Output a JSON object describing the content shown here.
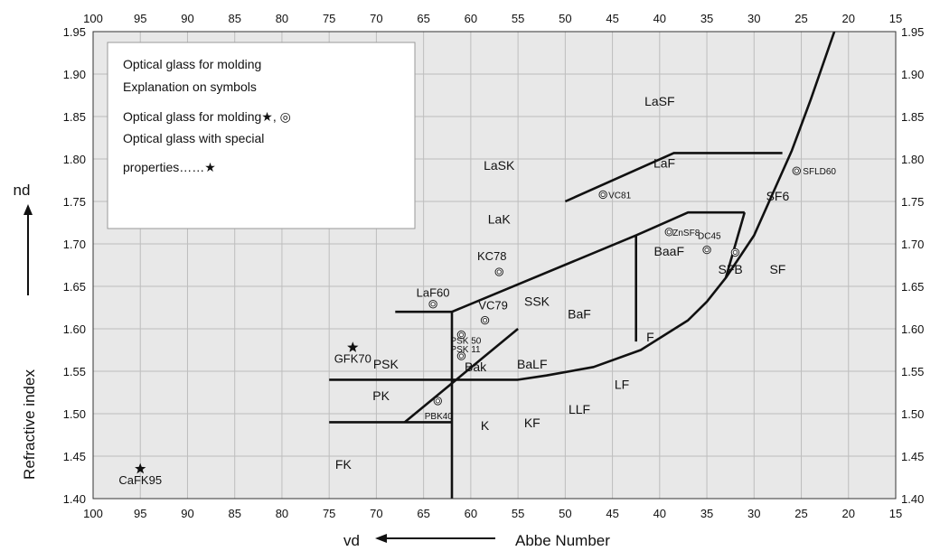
{
  "chart_data": {
    "type": "scatter",
    "x_axis": {
      "label": "vd",
      "caption": "Abbe Number",
      "range": [
        100,
        15
      ],
      "ticks": [
        100,
        95,
        90,
        85,
        80,
        75,
        70,
        65,
        60,
        55,
        50,
        45,
        40,
        35,
        30,
        25,
        20,
        15
      ]
    },
    "y_axis": {
      "label": "Refractive index",
      "symbol": "nd",
      "range": [
        1.4,
        1.95
      ],
      "ticks": [
        "1.40",
        "1.45",
        "1.50",
        "1.55",
        "1.60",
        "1.65",
        "1.70",
        "1.75",
        "1.80",
        "1.85",
        "1.90",
        "1.95"
      ]
    },
    "grid": true,
    "legend": {
      "placement": "top-left",
      "lines": [
        "Optical glass for molding",
        "Explanation on symbols",
        "Optical glass for molding★, ◎",
        "Optical glass with special",
        "properties……★"
      ]
    },
    "region_labels": [
      {
        "text": "LaSF",
        "x": 40,
        "y": 1.863
      },
      {
        "text": "LaSK",
        "x": 57,
        "y": 1.787
      },
      {
        "text": "LaF",
        "x": 39.5,
        "y": 1.79
      },
      {
        "text": "LaK",
        "x": 57,
        "y": 1.724
      },
      {
        "text": "SF6",
        "x": 27.5,
        "y": 1.751
      },
      {
        "text": "BaaF",
        "x": 39,
        "y": 1.686
      },
      {
        "text": "SFB",
        "x": 32.5,
        "y": 1.665
      },
      {
        "text": "SF",
        "x": 27.5,
        "y": 1.665
      },
      {
        "text": "SSK",
        "x": 53,
        "y": 1.627
      },
      {
        "text": "BaF",
        "x": 48.5,
        "y": 1.612
      },
      {
        "text": "F",
        "x": 41,
        "y": 1.585
      },
      {
        "text": "PSK",
        "x": 69,
        "y": 1.553
      },
      {
        "text": "Bak",
        "x": 59.5,
        "y": 1.55
      },
      {
        "text": "BaLF",
        "x": 53.5,
        "y": 1.553
      },
      {
        "text": "LF",
        "x": 44,
        "y": 1.529
      },
      {
        "text": "PK",
        "x": 69.5,
        "y": 1.516
      },
      {
        "text": "LLF",
        "x": 48.5,
        "y": 1.5
      },
      {
        "text": "K",
        "x": 58.5,
        "y": 1.481
      },
      {
        "text": "KF",
        "x": 53.5,
        "y": 1.484
      },
      {
        "text": "FK",
        "x": 73.5,
        "y": 1.435
      }
    ],
    "boundary_lines": [
      [
        [
          62,
          1.4
        ],
        [
          62,
          1.62
        ],
        [
          68,
          1.62
        ]
      ],
      [
        [
          75,
          1.54
        ],
        [
          55,
          1.54
        ],
        [
          52,
          1.545
        ],
        [
          47,
          1.555
        ],
        [
          42,
          1.575
        ],
        [
          37,
          1.61
        ],
        [
          35,
          1.632
        ],
        [
          33,
          1.66
        ],
        [
          30,
          1.71
        ],
        [
          28,
          1.76
        ],
        [
          26,
          1.81
        ],
        [
          24,
          1.87
        ],
        [
          21.5,
          1.95
        ]
      ],
      [
        [
          75,
          1.49
        ],
        [
          62,
          1.49
        ]
      ],
      [
        [
          67,
          1.49
        ],
        [
          55,
          1.6
        ]
      ],
      [
        [
          62,
          1.62
        ],
        [
          42.5,
          1.71
        ],
        [
          37,
          1.737
        ],
        [
          31,
          1.737
        ]
      ],
      [
        [
          42.5,
          1.71
        ],
        [
          42.5,
          1.585
        ]
      ],
      [
        [
          50,
          1.75
        ],
        [
          38.5,
          1.807
        ],
        [
          27,
          1.807
        ]
      ],
      [
        [
          31,
          1.737
        ],
        [
          33,
          1.66
        ]
      ]
    ],
    "glasses": [
      {
        "name": "CaFK95",
        "x": 95,
        "y": 1.435,
        "symbol": "star",
        "label_size": "normal"
      },
      {
        "name": "GFK70",
        "x": 72.5,
        "y": 1.578,
        "symbol": "star",
        "label_size": "normal"
      },
      {
        "name": "LaF60",
        "x": 64,
        "y": 1.629,
        "symbol": "double-circle",
        "label_size": "normal"
      },
      {
        "name": "KC78",
        "x": 57,
        "y": 1.667,
        "symbol": "double-circle",
        "label_size": "normal"
      },
      {
        "name": "VC79",
        "x": 58.5,
        "y": 1.61,
        "symbol": "double-circle",
        "label_size": "normal"
      },
      {
        "name": "VC81",
        "x": 46,
        "y": 1.758,
        "symbol": "double-circle",
        "label_size": "small"
      },
      {
        "name": "ZnSF8",
        "x": 39,
        "y": 1.714,
        "symbol": "double-circle",
        "label_size": "small"
      },
      {
        "name": "DC45",
        "x": 35,
        "y": 1.693,
        "symbol": "double-circle",
        "label_size": "small"
      },
      {
        "name": "SFLD60",
        "x": 25.5,
        "y": 1.786,
        "symbol": "double-circle",
        "label_size": "small"
      },
      {
        "name": "PSK 50",
        "x": 61,
        "y": 1.593,
        "symbol": "double-circle",
        "label_size": "small"
      },
      {
        "name": "PSK 11",
        "x": 61,
        "y": 1.568,
        "symbol": "double-circle",
        "label_size": "small"
      },
      {
        "name": "PBK40",
        "x": 63.5,
        "y": 1.515,
        "symbol": "double-circle",
        "label_size": "small"
      }
    ],
    "extra_symbols": [
      {
        "x": 32,
        "y": 1.69,
        "symbol": "double-circle"
      }
    ],
    "colors": {
      "grid": "#bdbdbd",
      "plot_bg": "#e8e8e8",
      "line": "#111111",
      "frame": "#333333"
    }
  }
}
